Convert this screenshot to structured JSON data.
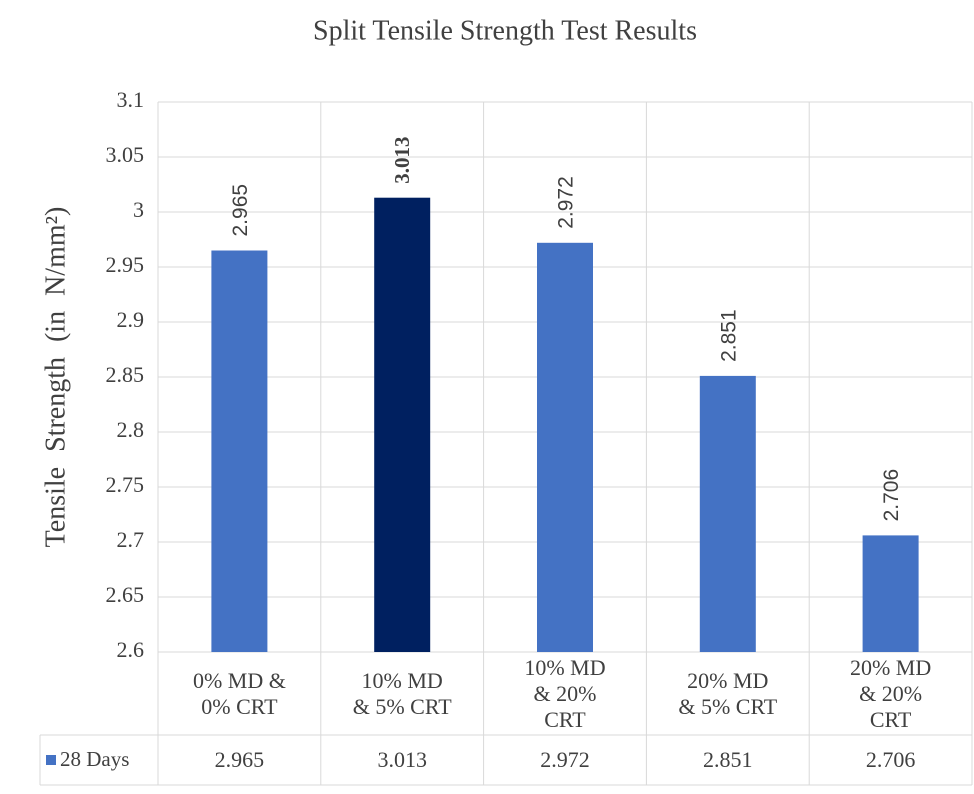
{
  "chart_data": {
    "type": "bar",
    "title": "Split Tensile Strength Test Results",
    "y_label": "Tensile Strength (in N/mm²)",
    "categories": [
      "0% MD & 0% CRT",
      "10% MD & 5% CRT",
      "10% MD & 20% CRT",
      "20% MD & 5% CRT",
      "20% MD & 20% CRT"
    ],
    "series": [
      {
        "name": "28 Days",
        "color": "#4472c4",
        "colors": [
          "#4472c4",
          "#002060",
          "#4472c4",
          "#4472c4",
          "#4472c4"
        ],
        "values": [
          2.965,
          3.013,
          2.972,
          2.851,
          2.706
        ],
        "value_label_bold": [
          false,
          true,
          false,
          false,
          false
        ]
      }
    ],
    "ylim": [
      2.6,
      3.1
    ],
    "yticks": [
      2.6,
      2.65,
      2.7,
      2.75,
      2.8,
      2.85,
      2.9,
      2.95,
      3,
      3.05,
      3.1
    ],
    "grid": true,
    "data_table": true
  }
}
